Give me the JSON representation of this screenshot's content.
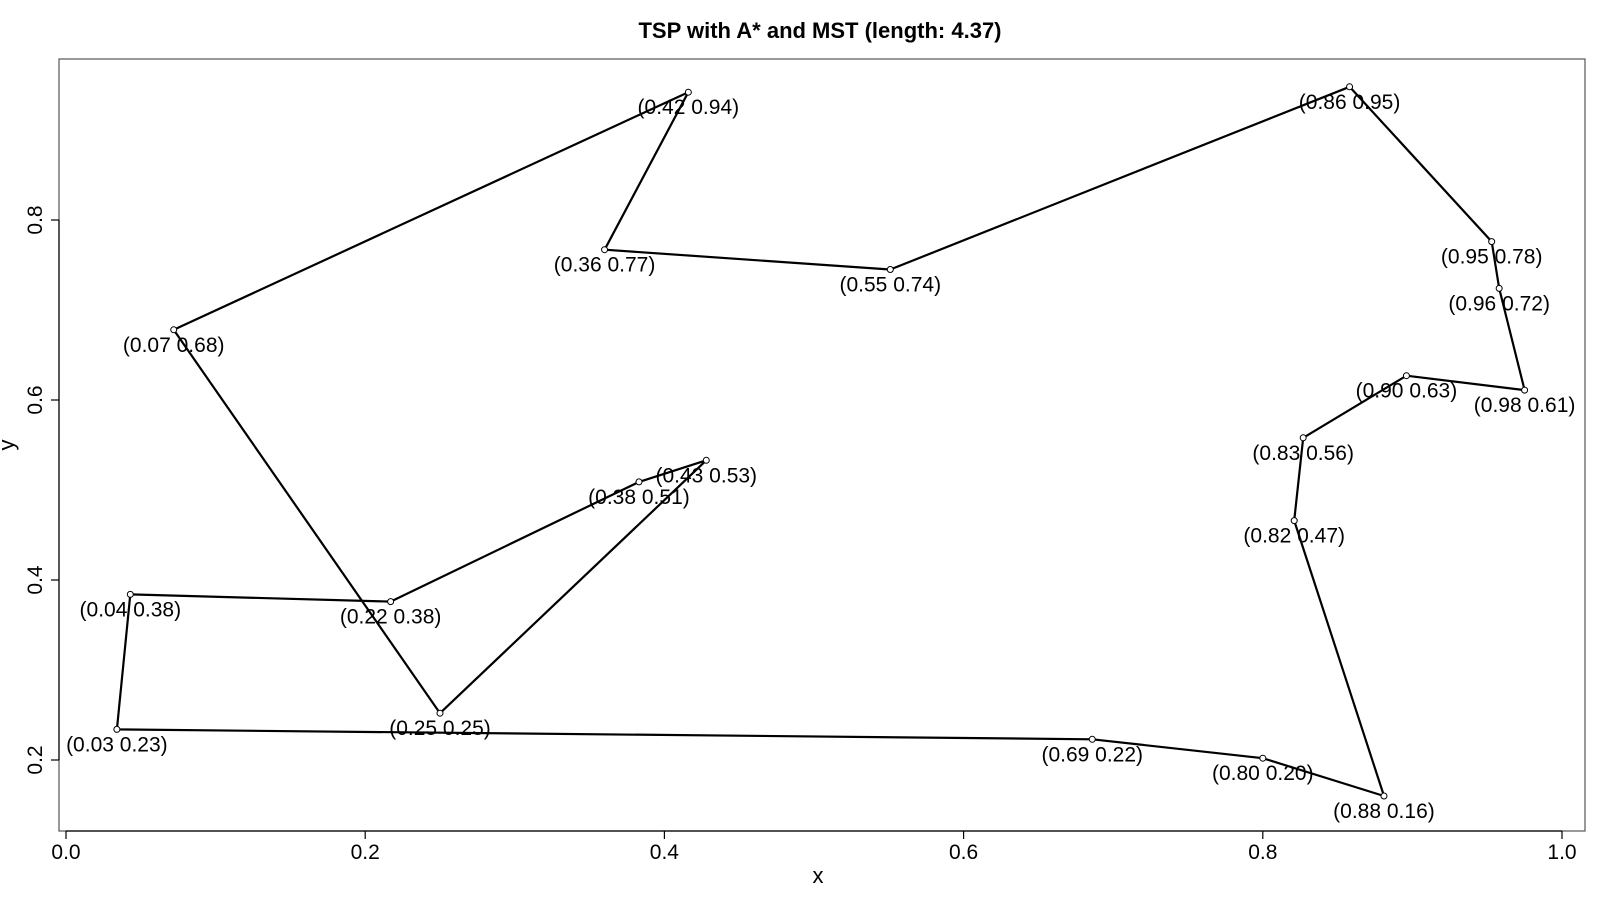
{
  "chart_data": {
    "type": "line",
    "title": "TSP with A* and MST (length: 4.37)",
    "xlabel": "x",
    "ylabel": "y",
    "xlim": [
      0.0,
      1.0
    ],
    "ylim": [
      0.13,
      0.96
    ],
    "xticks": [
      0.0,
      0.2,
      0.4,
      0.6,
      0.8,
      1.0
    ],
    "xtick_labels": [
      "0.0",
      "0.2",
      "0.4",
      "0.6",
      "0.8",
      "1.0"
    ],
    "yticks": [
      0.2,
      0.4,
      0.6,
      0.8
    ],
    "ytick_labels": [
      "0.2",
      "0.4",
      "0.6",
      "0.8"
    ],
    "grid": false,
    "tour": [
      {
        "x": 0.034,
        "y": 0.234,
        "label": "(0.03 0.23)"
      },
      {
        "x": 0.686,
        "y": 0.223,
        "label": "(0.69 0.22)"
      },
      {
        "x": 0.8,
        "y": 0.202,
        "label": "(0.80 0.20)"
      },
      {
        "x": 0.881,
        "y": 0.16,
        "label": "(0.88 0.16)"
      },
      {
        "x": 0.821,
        "y": 0.466,
        "label": "(0.82 0.47)"
      },
      {
        "x": 0.827,
        "y": 0.558,
        "label": "(0.83 0.56)"
      },
      {
        "x": 0.896,
        "y": 0.627,
        "label": "(0.90 0.63)"
      },
      {
        "x": 0.975,
        "y": 0.611,
        "label": "(0.98 0.61)"
      },
      {
        "x": 0.958,
        "y": 0.724,
        "label": "(0.96 0.72)"
      },
      {
        "x": 0.953,
        "y": 0.776,
        "label": "(0.95 0.78)"
      },
      {
        "x": 0.858,
        "y": 0.948,
        "label": "(0.86 0.95)"
      },
      {
        "x": 0.551,
        "y": 0.745,
        "label": "(0.55 0.74)"
      },
      {
        "x": 0.36,
        "y": 0.767,
        "label": "(0.36 0.77)"
      },
      {
        "x": 0.416,
        "y": 0.942,
        "label": "(0.42 0.94)"
      },
      {
        "x": 0.072,
        "y": 0.678,
        "label": "(0.07 0.68)"
      },
      {
        "x": 0.25,
        "y": 0.252,
        "label": "(0.25 0.25)"
      },
      {
        "x": 0.428,
        "y": 0.533,
        "label": "(0.43 0.53)"
      },
      {
        "x": 0.383,
        "y": 0.509,
        "label": "(0.38 0.51)"
      },
      {
        "x": 0.217,
        "y": 0.376,
        "label": "(0.22 0.38)"
      },
      {
        "x": 0.043,
        "y": 0.384,
        "label": "(0.04 0.38)"
      },
      {
        "x": 0.034,
        "y": 0.234,
        "label": "(0.03 0.23)"
      }
    ]
  }
}
